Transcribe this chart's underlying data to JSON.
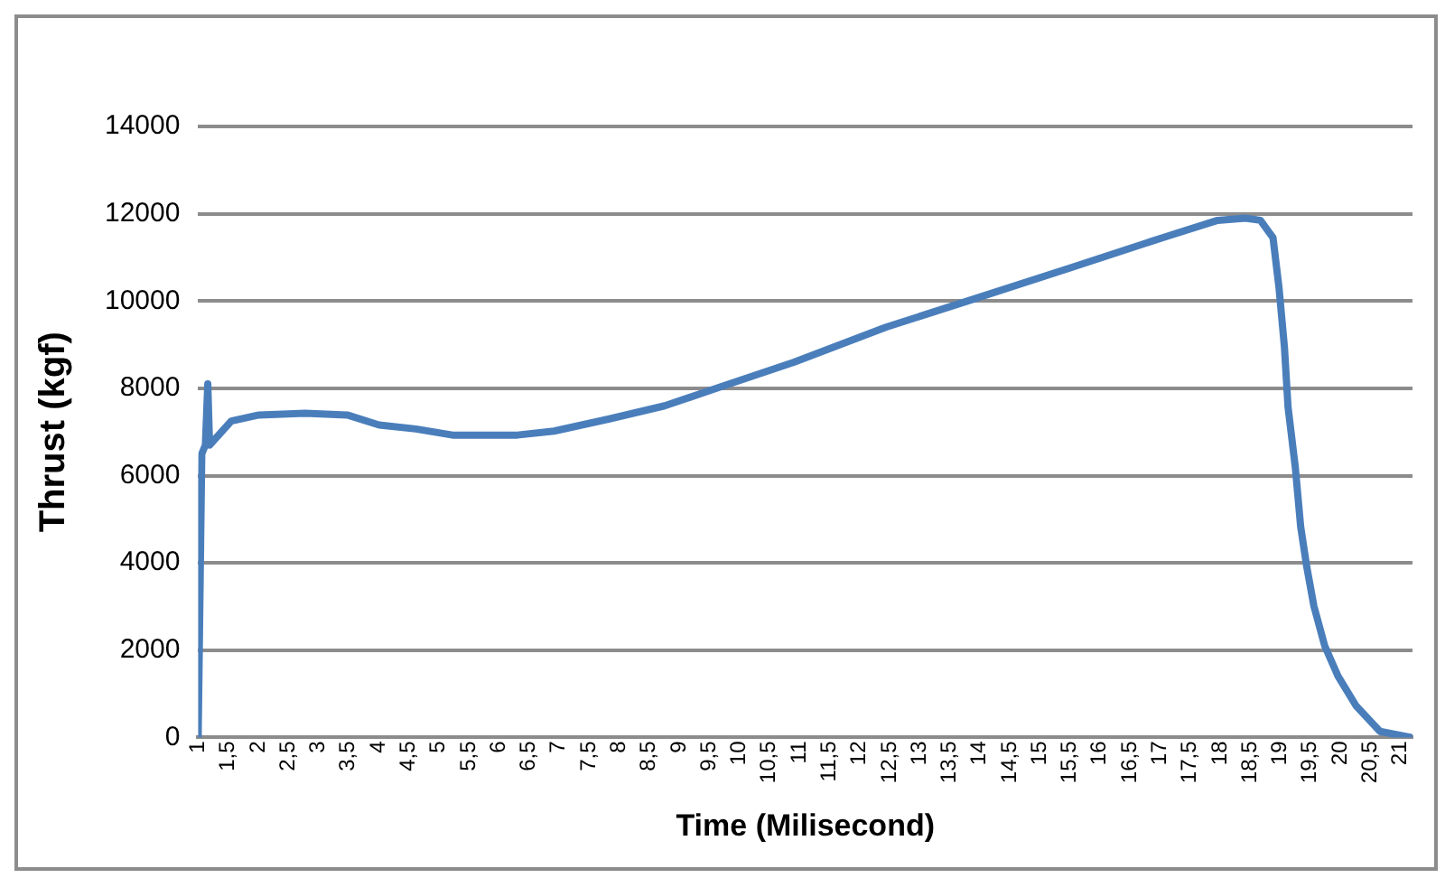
{
  "chart_data": {
    "type": "line",
    "xlabel": "Time (Milisecond)",
    "ylabel": "Thrust (kgf)",
    "xlim": [
      1,
      21.2
    ],
    "xticks": [
      1,
      {
        "value": 1.5,
        "label": "1,5"
      },
      2,
      {
        "value": 2.5,
        "label": "2,5"
      },
      3,
      {
        "value": 3.5,
        "label": "3,5"
      },
      4,
      {
        "value": 4.5,
        "label": "4,5"
      },
      5,
      {
        "value": 5.5,
        "label": "5,5"
      },
      6,
      {
        "value": 6.5,
        "label": "6,5"
      },
      7,
      {
        "value": 7.5,
        "label": "7,5"
      },
      8,
      {
        "value": 8.5,
        "label": "8,5"
      },
      9,
      {
        "value": 9.5,
        "label": "9,5"
      },
      10,
      {
        "value": 10.5,
        "label": "10,5"
      },
      11,
      {
        "value": 11.5,
        "label": "11,5"
      },
      12,
      {
        "value": 12.5,
        "label": "12,5"
      },
      13,
      {
        "value": 13.5,
        "label": "13,5"
      },
      14,
      {
        "value": 14.5,
        "label": "14,5"
      },
      15,
      {
        "value": 15.5,
        "label": "15,5"
      },
      16,
      {
        "value": 16.5,
        "label": "16,5"
      },
      17,
      {
        "value": 17.5,
        "label": "17,5"
      },
      18,
      {
        "value": 18.5,
        "label": "18,5"
      },
      19,
      {
        "value": 19.5,
        "label": "19,5"
      },
      20,
      {
        "value": 20.5,
        "label": "20,5"
      },
      21
    ],
    "ylim": [
      0,
      14000
    ],
    "yticks": [
      0,
      2000,
      4000,
      6000,
      8000,
      10000,
      12000,
      14000
    ],
    "grid": "y",
    "legend": false,
    "marker": "none",
    "line_style": "solid",
    "series": [
      {
        "color": "#4a7ebb",
        "x": [
          1,
          1.06,
          1.12,
          1.16,
          1.19,
          1.55,
          2.01,
          2.78,
          3.48,
          4.01,
          4.62,
          5.23,
          6.31,
          6.92,
          7.84,
          8.76,
          9.68,
          10.91,
          12.44,
          13.98,
          15.51,
          17.04,
          17.96,
          18.42,
          18.67,
          18.88,
          18.98,
          19.07,
          19.13,
          19.25,
          19.34,
          19.44,
          19.56,
          19.74,
          19.96,
          20.26,
          20.66,
          21.18
        ],
        "values": [
          0,
          6500,
          6700,
          8100,
          6700,
          7250,
          7390,
          7430,
          7390,
          7160,
          7070,
          6930,
          6930,
          7020,
          7300,
          7600,
          8030,
          8600,
          9400,
          10080,
          10760,
          11450,
          11850,
          11900,
          11850,
          11450,
          10300,
          8940,
          7570,
          6200,
          4830,
          3920,
          3010,
          2100,
          1410,
          730,
          140,
          0
        ]
      }
    ]
  }
}
